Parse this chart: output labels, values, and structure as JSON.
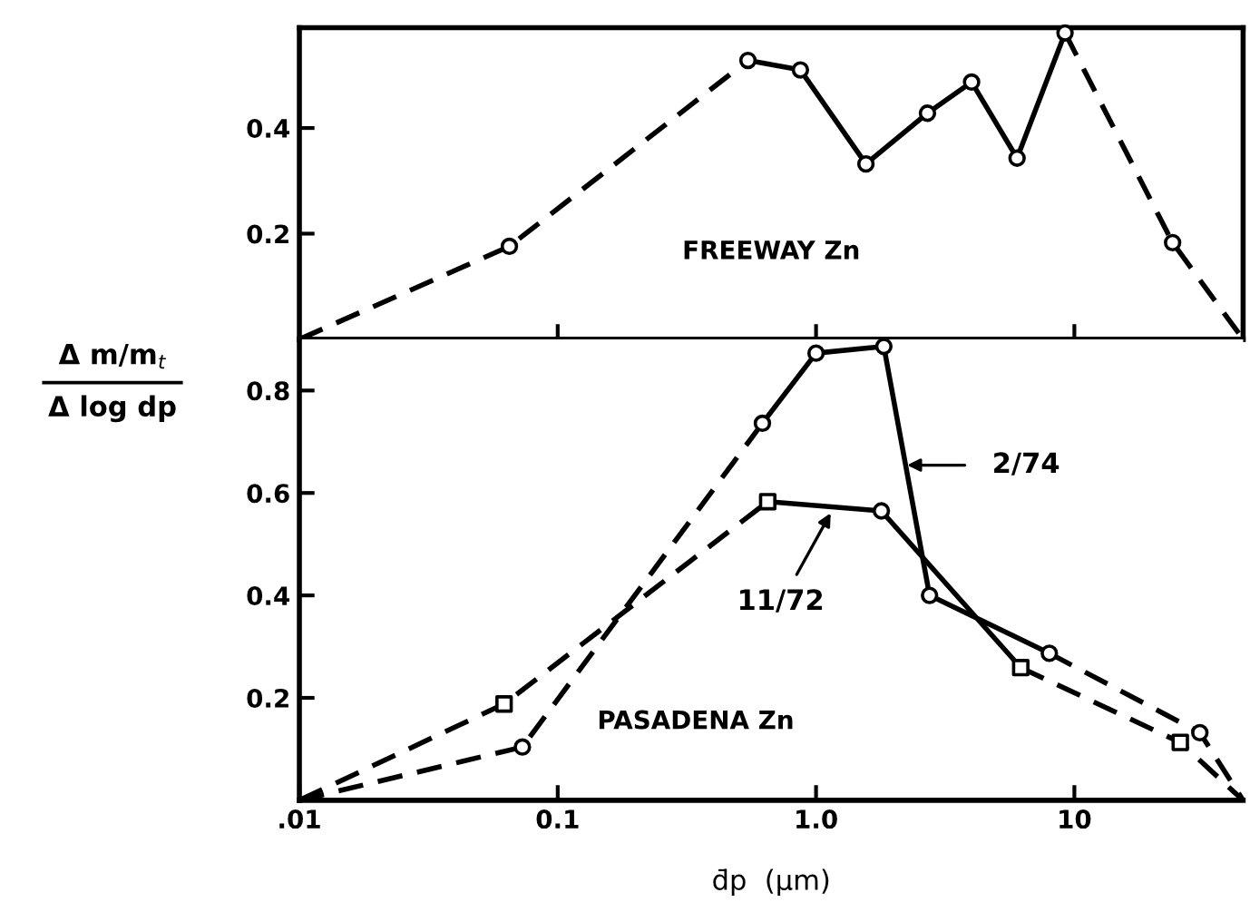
{
  "chart_data": [
    {
      "type": "line",
      "log": "x",
      "xlim": [
        0.01,
        45
      ],
      "xticks": [
        {
          "value": 0.1,
          "label": null
        },
        {
          "value": 1,
          "label": null
        },
        {
          "value": 10,
          "label": null
        }
      ],
      "ylim": [
        0,
        0.59
      ],
      "yticks": [
        0.2,
        0.4
      ],
      "tick_labels": "y",
      "grid": false,
      "legend": false,
      "series": [
        {
          "type": "line",
          "color": "#000000",
          "line_style": "dashed",
          "marker": "none",
          "x": [
            0.01,
            0.065,
            0.545
          ],
          "values": [
            0,
            0.176,
            0.528
          ]
        },
        {
          "type": "line",
          "color": "#000000",
          "line_style": "solid",
          "marker": "none",
          "x": [
            0.545,
            0.87,
            1.56,
            2.7,
            4.0,
            6.0,
            9.2
          ],
          "values": [
            0.528,
            0.51,
            0.332,
            0.428,
            0.487,
            0.343,
            0.58
          ]
        },
        {
          "type": "line",
          "color": "#000000",
          "line_style": "dashed",
          "marker": "none",
          "x": [
            9.2,
            24,
            45
          ],
          "values": [
            0.58,
            0.183,
            0
          ]
        },
        {
          "type": "scatter",
          "color": "#000000",
          "marker": "circle",
          "x": [
            0.065,
            0.545,
            0.87,
            1.56,
            2.7,
            4.0,
            6.0,
            9.2,
            24
          ],
          "values": [
            0.176,
            0.528,
            0.51,
            0.332,
            0.428,
            0.487,
            0.343,
            0.58,
            0.183
          ]
        }
      ],
      "annotations": [
        "FREEWAY Zn"
      ]
    },
    {
      "type": "line",
      "log": "x",
      "xlim": [
        0.01,
        45
      ],
      "xticks": [
        {
          "value": 0.01,
          "label": ".01"
        },
        {
          "value": 0.1,
          "label": "0.1"
        },
        {
          "value": 1,
          "label": "1.0"
        },
        {
          "value": 10,
          "label": "10"
        }
      ],
      "ylim": [
        0,
        0.9
      ],
      "yticks": [
        0.2,
        0.4,
        0.6,
        0.8
      ],
      "grid": false,
      "legend": false,
      "xlabel": "d̄p  (μm)",
      "ylabel": "Δ m/m$_{t}$\nΔ log dp",
      "series": [
        {
          "type": "line",
          "color": "#000000",
          "line_style": "dashed",
          "marker": "none",
          "x": [
            0.01,
            0.073,
            0.62
          ],
          "values": [
            0,
            0.104,
            0.736
          ]
        },
        {
          "type": "line",
          "color": "#000000",
          "line_style": "solid",
          "marker": "none",
          "x": [
            0.62,
            1.0,
            1.83,
            2.75,
            8.0
          ],
          "values": [
            0.736,
            0.873,
            0.886,
            0.4,
            0.287
          ]
        },
        {
          "type": "line",
          "color": "#000000",
          "line_style": "dashed",
          "marker": "none",
          "x": [
            8.0,
            30.6,
            45
          ],
          "values": [
            0.287,
            0.132,
            0
          ]
        },
        {
          "type": "scatter",
          "color": "#000000",
          "marker": "circle",
          "x": [
            0.073,
            0.62,
            1.0,
            1.83,
            2.75,
            8.0,
            30.6
          ],
          "values": [
            0.104,
            0.736,
            0.873,
            0.886,
            0.4,
            0.287,
            0.132
          ]
        },
        {
          "type": "line",
          "color": "#000000",
          "line_style": "dashed",
          "marker": "none",
          "x": [
            0.01,
            0.062,
            0.65
          ],
          "values": [
            0,
            0.188,
            0.583
          ]
        },
        {
          "type": "line",
          "color": "#000000",
          "line_style": "solid",
          "marker": "none",
          "x": [
            0.65,
            1.79,
            6.2
          ],
          "values": [
            0.583,
            0.565,
            0.259
          ]
        },
        {
          "type": "line",
          "color": "#000000",
          "line_style": "dashed",
          "marker": "none",
          "x": [
            6.2,
            25.7,
            45
          ],
          "values": [
            0.259,
            0.113,
            0
          ]
        },
        {
          "type": "scatter",
          "color": "#000000",
          "marker": "square",
          "x": [
            0.062,
            0.65,
            6.2,
            25.7
          ],
          "values": [
            0.188,
            0.583,
            0.259,
            0.113
          ]
        },
        {
          "type": "scatter",
          "color": "#000000",
          "marker": "circle",
          "x": [
            1.79
          ],
          "values": [
            0.565
          ]
        }
      ],
      "annotations": [
        "2/74",
        "11/72",
        "PASADENA Zn"
      ]
    }
  ]
}
